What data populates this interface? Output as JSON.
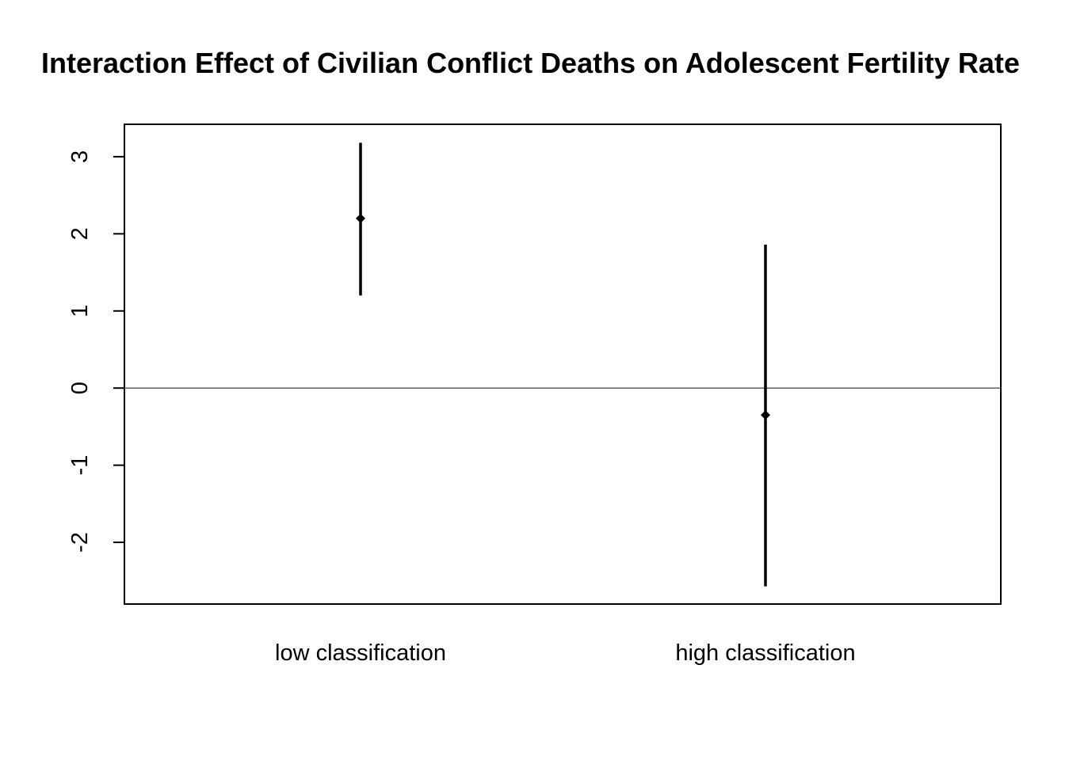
{
  "chart_data": {
    "type": "scatter",
    "title": "Interaction Effect of Civilian Conflict Deaths on Adolescent Fertility Rate",
    "xlabel": "",
    "ylabel": "",
    "categories": [
      "low classification",
      "high classification"
    ],
    "series": [
      {
        "values": [
          2.2,
          -0.35
        ],
        "lower": [
          1.2,
          -2.57
        ],
        "upper": [
          3.18,
          1.86
        ]
      }
    ],
    "ylim": [
      -2.8,
      3.42
    ],
    "yticks": [
      -2,
      -1,
      0,
      1,
      2,
      3
    ],
    "reference_line": 0,
    "grid": false,
    "colors": {
      "marks": "#000000",
      "reference_line": "#555555",
      "frame": "#000000"
    }
  }
}
